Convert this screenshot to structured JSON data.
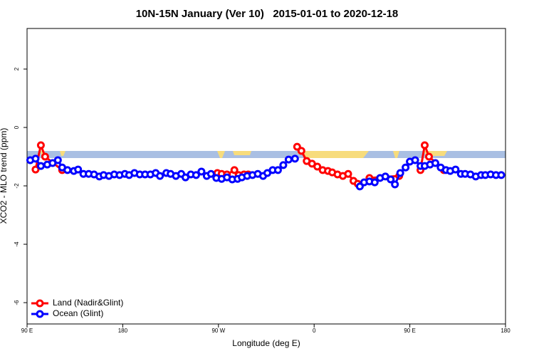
{
  "chart_data": {
    "type": "line",
    "title": "10N-15N January (Ver 10)   2015-01-01 to 2020-12-18",
    "xlabel": "Longitude (deg E)",
    "ylabel": "XCO2 - MLO trend (ppm)",
    "xlim": [
      90,
      540
    ],
    "xticks": [
      {
        "value": 90,
        "label": "90 E"
      },
      {
        "value": 180,
        "label": "180"
      },
      {
        "value": 270,
        "label": "90 W"
      },
      {
        "value": 360,
        "label": "0"
      },
      {
        "value": 450,
        "label": "90 E"
      },
      {
        "value": 540,
        "label": "180"
      }
    ],
    "ylim": [
      -6.73,
      3.39
    ],
    "yticks": [
      -6,
      -4,
      -2,
      0,
      2
    ],
    "legend": "bottom-left",
    "series": [
      {
        "name": "Land (Nadir&Glint)",
        "color": "#ff0000",
        "x": [
          98,
          103,
          107,
          123,
          200,
          269,
          273,
          278,
          285,
          289,
          294,
          298,
          320,
          344,
          348,
          353,
          358,
          363,
          368,
          373,
          377,
          382,
          387,
          392,
          397,
          401,
          412,
          440,
          450,
          460,
          464,
          468,
          482
        ],
        "values": [
          -1.44,
          -0.61,
          -1.0,
          -1.46,
          null,
          -1.56,
          -1.59,
          -1.61,
          -1.46,
          -1.63,
          -1.61,
          -1.61,
          null,
          -0.66,
          -0.8,
          -1.15,
          -1.24,
          -1.34,
          -1.46,
          -1.49,
          -1.54,
          -1.61,
          -1.66,
          -1.59,
          -1.83,
          -1.93,
          -1.73,
          -1.66,
          null,
          -1.46,
          -0.61,
          -1.0,
          -1.46
        ]
      },
      {
        "name": "Ocean (Glint)",
        "color": "#0000ff",
        "x": [
          93,
          98,
          103,
          109,
          114,
          119,
          123,
          128,
          134,
          138,
          143,
          148,
          153,
          158,
          162,
          167,
          172,
          177,
          182,
          186,
          191,
          196,
          201,
          206,
          211,
          215,
          221,
          225,
          230,
          235,
          239,
          244,
          249,
          254,
          259,
          263,
          268,
          273,
          278,
          283,
          288,
          292,
          297,
          302,
          307,
          312,
          316,
          321,
          326,
          331,
          336,
          342,
          372,
          403,
          407,
          412,
          417,
          422,
          427,
          432,
          436,
          441,
          446,
          450,
          455,
          460,
          464,
          469,
          474,
          479,
          484,
          488,
          493,
          498,
          502,
          507,
          512,
          517,
          521,
          526,
          531,
          536
        ],
        "values": [
          -1.12,
          -1.07,
          -1.32,
          -1.27,
          -1.22,
          -1.12,
          -1.37,
          -1.46,
          -1.49,
          -1.44,
          -1.59,
          -1.59,
          -1.61,
          -1.68,
          -1.63,
          -1.66,
          -1.61,
          -1.63,
          -1.59,
          -1.63,
          -1.56,
          -1.61,
          -1.61,
          -1.61,
          -1.56,
          -1.66,
          -1.56,
          -1.59,
          -1.66,
          -1.59,
          -1.71,
          -1.61,
          -1.63,
          -1.51,
          -1.66,
          -1.59,
          -1.73,
          -1.76,
          -1.71,
          -1.78,
          -1.76,
          -1.71,
          -1.66,
          -1.63,
          -1.59,
          -1.66,
          -1.56,
          -1.46,
          -1.46,
          -1.29,
          -1.1,
          -1.07,
          null,
          -2.02,
          -1.88,
          -1.85,
          -1.88,
          -1.73,
          -1.68,
          -1.78,
          -1.95,
          -1.56,
          -1.37,
          -1.17,
          -1.12,
          -1.32,
          -1.32,
          -1.27,
          -1.22,
          -1.37,
          -1.46,
          -1.49,
          -1.44,
          -1.59,
          -1.59,
          -1.61,
          -1.68,
          -1.63,
          -1.63,
          -1.61,
          -1.63,
          -1.63
        ]
      }
    ]
  }
}
